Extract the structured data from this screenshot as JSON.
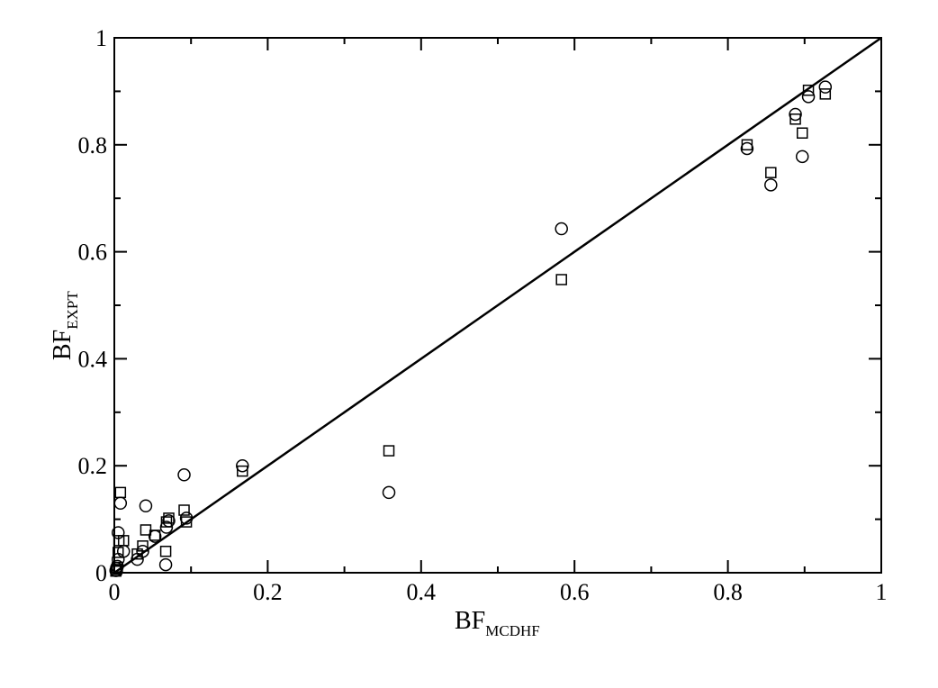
{
  "chart_data": {
    "type": "scatter",
    "title": "",
    "xlabel": {
      "main": "BF",
      "sub": "MCDHF"
    },
    "ylabel": {
      "main": "BF",
      "sub": "EXPT"
    },
    "xlim": [
      0,
      1
    ],
    "ylim": [
      0,
      1
    ],
    "x_ticks": [
      0,
      0.2,
      0.4,
      0.6,
      0.8,
      1
    ],
    "x_tick_labels": [
      "0",
      "0.2",
      "0.4",
      "0.6",
      "0.8",
      "1"
    ],
    "y_ticks": [
      0,
      0.2,
      0.4,
      0.6,
      0.8,
      1
    ],
    "y_tick_labels": [
      "0",
      "0.2",
      "0.4",
      "0.6",
      "0.8",
      "1"
    ],
    "grid": false,
    "reference_line": {
      "x": [
        0,
        1
      ],
      "y": [
        0,
        1
      ]
    },
    "series": [
      {
        "marker": "square",
        "points": [
          [
            0.002,
            0.003
          ],
          [
            0.003,
            0.006
          ],
          [
            0.004,
            0.01
          ],
          [
            0.005,
            0.038
          ],
          [
            0.006,
            0.06
          ],
          [
            0.008,
            0.15
          ],
          [
            0.012,
            0.06
          ],
          [
            0.03,
            0.035
          ],
          [
            0.037,
            0.05
          ],
          [
            0.041,
            0.08
          ],
          [
            0.053,
            0.07
          ],
          [
            0.067,
            0.04
          ],
          [
            0.068,
            0.095
          ],
          [
            0.071,
            0.102
          ],
          [
            0.091,
            0.117
          ],
          [
            0.094,
            0.095
          ],
          [
            0.167,
            0.19
          ],
          [
            0.358,
            0.228
          ],
          [
            0.583,
            0.548
          ],
          [
            0.825,
            0.8
          ],
          [
            0.856,
            0.748
          ],
          [
            0.888,
            0.848
          ],
          [
            0.897,
            0.822
          ],
          [
            0.905,
            0.902
          ],
          [
            0.927,
            0.895
          ]
        ]
      },
      {
        "marker": "circle",
        "points": [
          [
            0.002,
            0.004
          ],
          [
            0.003,
            0.008
          ],
          [
            0.004,
            0.012
          ],
          [
            0.005,
            0.025
          ],
          [
            0.005,
            0.075
          ],
          [
            0.008,
            0.13
          ],
          [
            0.012,
            0.04
          ],
          [
            0.03,
            0.025
          ],
          [
            0.037,
            0.04
          ],
          [
            0.041,
            0.125
          ],
          [
            0.053,
            0.068
          ],
          [
            0.067,
            0.015
          ],
          [
            0.068,
            0.085
          ],
          [
            0.071,
            0.097
          ],
          [
            0.091,
            0.183
          ],
          [
            0.094,
            0.102
          ],
          [
            0.167,
            0.2
          ],
          [
            0.358,
            0.15
          ],
          [
            0.583,
            0.643
          ],
          [
            0.825,
            0.793
          ],
          [
            0.856,
            0.725
          ],
          [
            0.888,
            0.857
          ],
          [
            0.897,
            0.778
          ],
          [
            0.905,
            0.89
          ],
          [
            0.927,
            0.908
          ]
        ]
      }
    ]
  }
}
